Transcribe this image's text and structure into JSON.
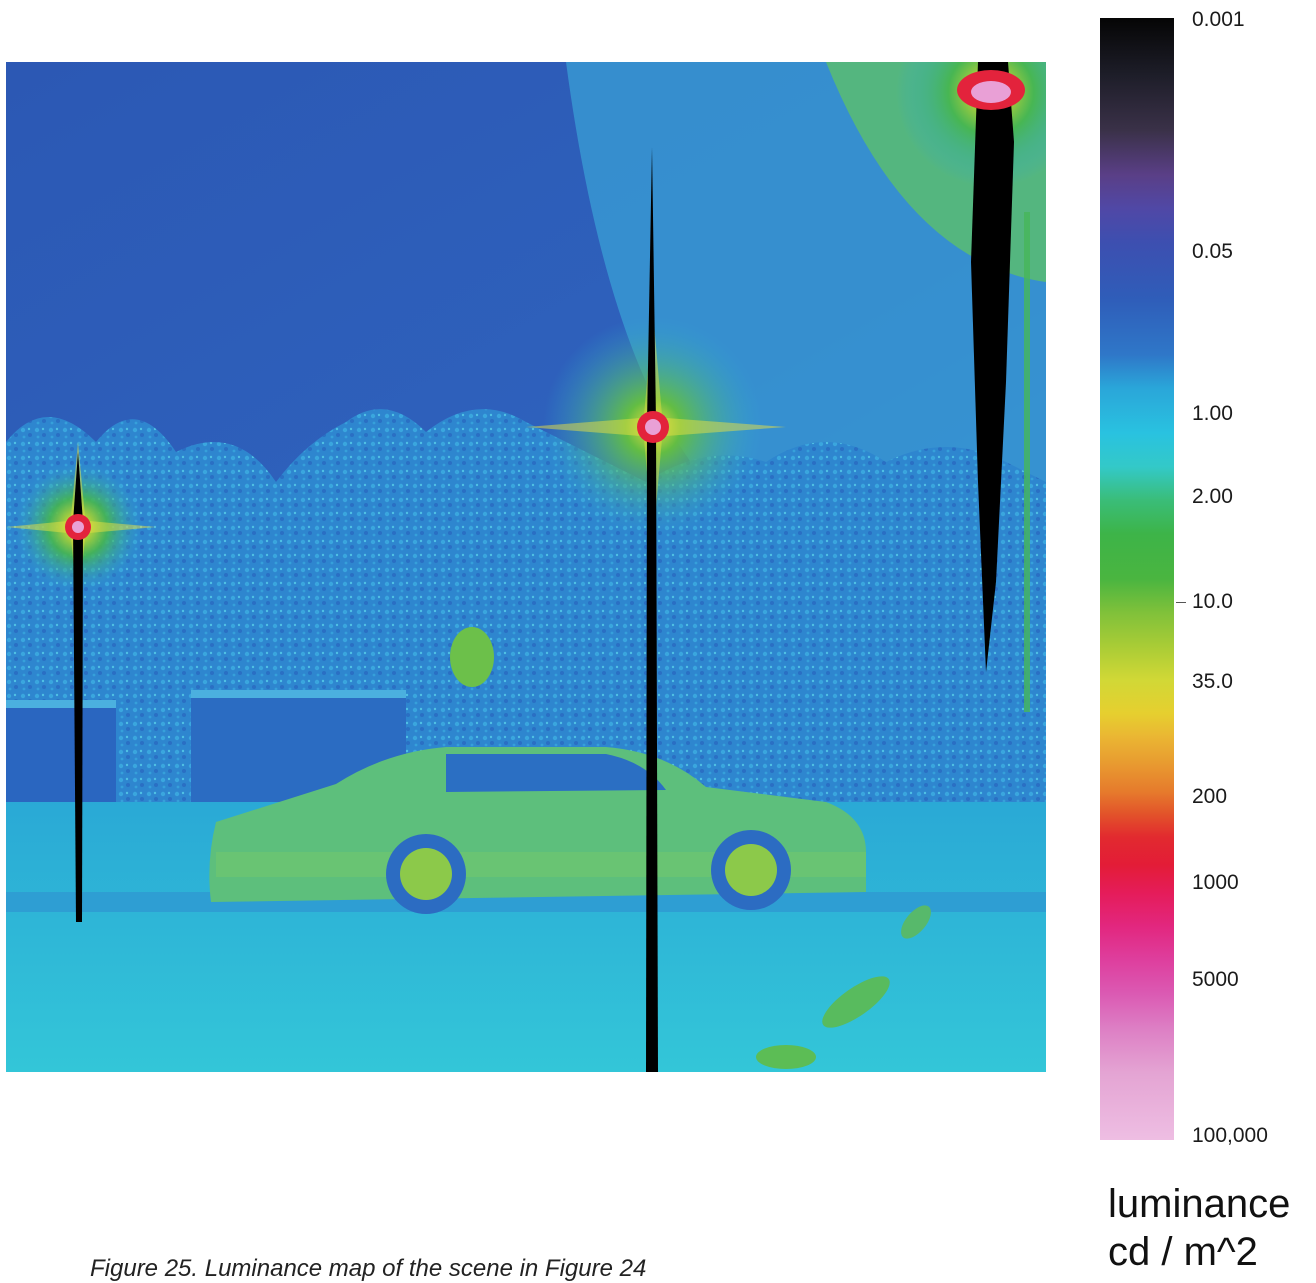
{
  "image": {
    "description_name": "luminance-false-color-map"
  },
  "scale": {
    "ticks": [
      "0.001",
      "0.05",
      "1.00",
      "2.00",
      "10.0",
      "35.0",
      "200",
      "1000",
      "5000",
      "100,000"
    ],
    "title_line1": "luminance",
    "title_line2": "cd / m^2"
  },
  "caption": "Figure 25. Luminance map of the scene in Figure 24",
  "colors": {
    "sky": "#2d5fba",
    "trees": "#2f86cf",
    "ground": "#2bbad9",
    "car": "#5cc07a",
    "pole": "#000000",
    "lamp_core": "#e9a0d6",
    "lamp_ring": "#e3233c",
    "glow": "#d5d836"
  }
}
